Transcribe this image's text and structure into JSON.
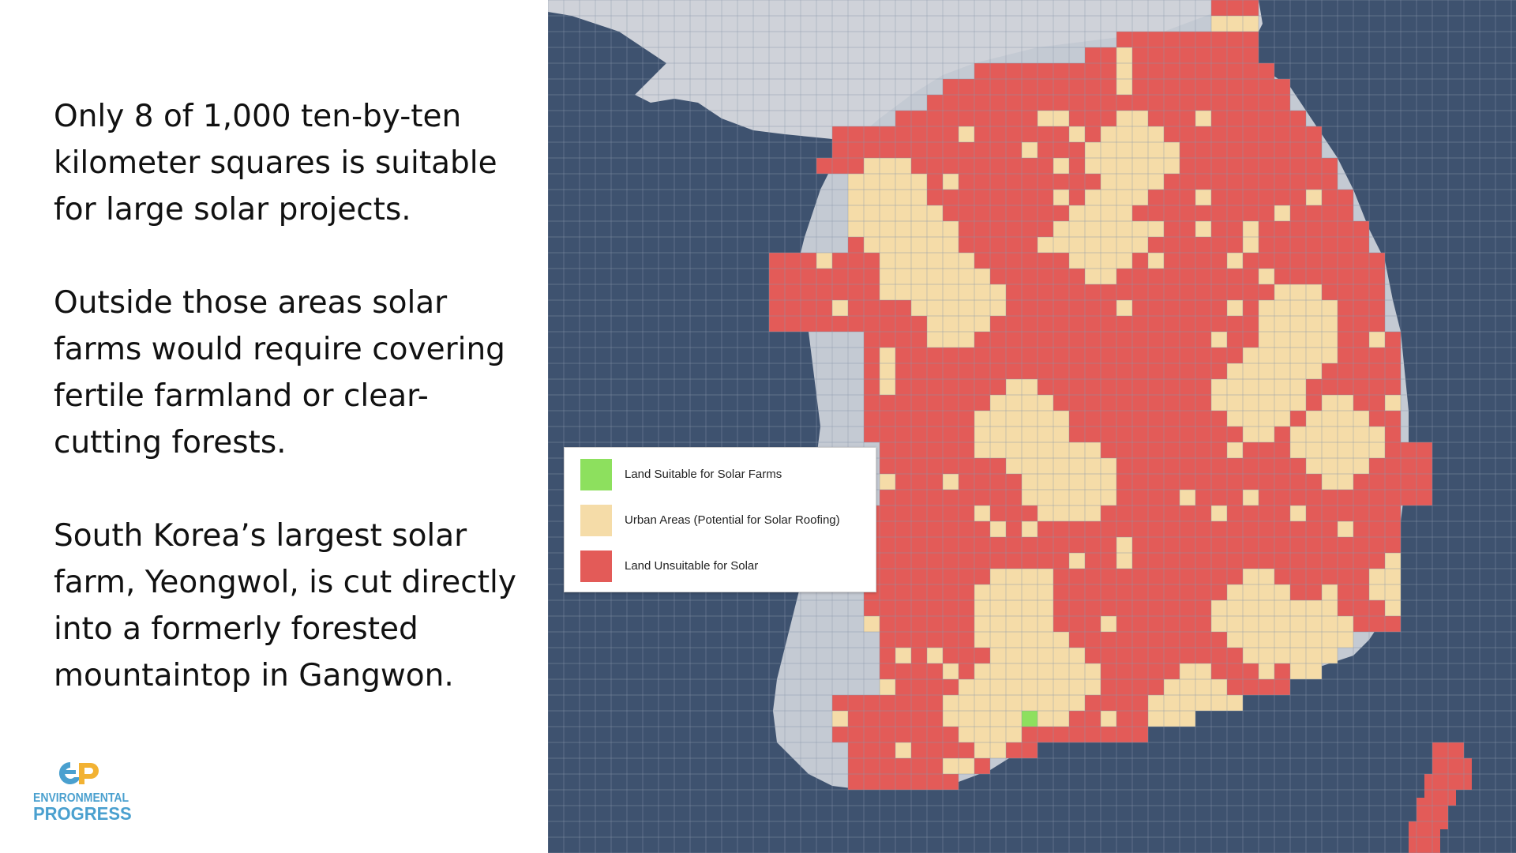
{
  "text": {
    "paragraph_1": [
      "Only 8 of 1,000 ten-by-ten",
      "kilometer squares is suitable",
      "for large solar projects."
    ],
    "paragraph_2": [
      "Outside those areas solar",
      "farms would require covering",
      "fertile farmland or clear-",
      "cutting forests."
    ],
    "paragraph_3": [
      "South Korea’s largest solar",
      "farm, Yeongwol, is cut directly",
      "into a formerly forested",
      "mountaintop in Gangwon."
    ]
  },
  "logo": {
    "line1": "ENVIRONMENTAL",
    "line2": "PROGRESS",
    "icon": "ep-logo-icon",
    "color": "#4aa0cf",
    "accent_color": "#f2b233"
  },
  "legend": {
    "items": [
      {
        "label": "Land Suitable for Solar Farms",
        "color": "#8de05e"
      },
      {
        "label": "Urban Areas (Potential for Solar Roofing)",
        "color": "#f5dca8"
      },
      {
        "label": "Land Unsuitable for Solar",
        "color": "#e35b58"
      }
    ]
  },
  "map": {
    "sea_color": "#3e526f",
    "north_land_color": "#cfd2d9",
    "coast_color": "#c4cad3",
    "grid_color": "#8a97ab",
    "north_grid_color": "#c9848a"
  }
}
